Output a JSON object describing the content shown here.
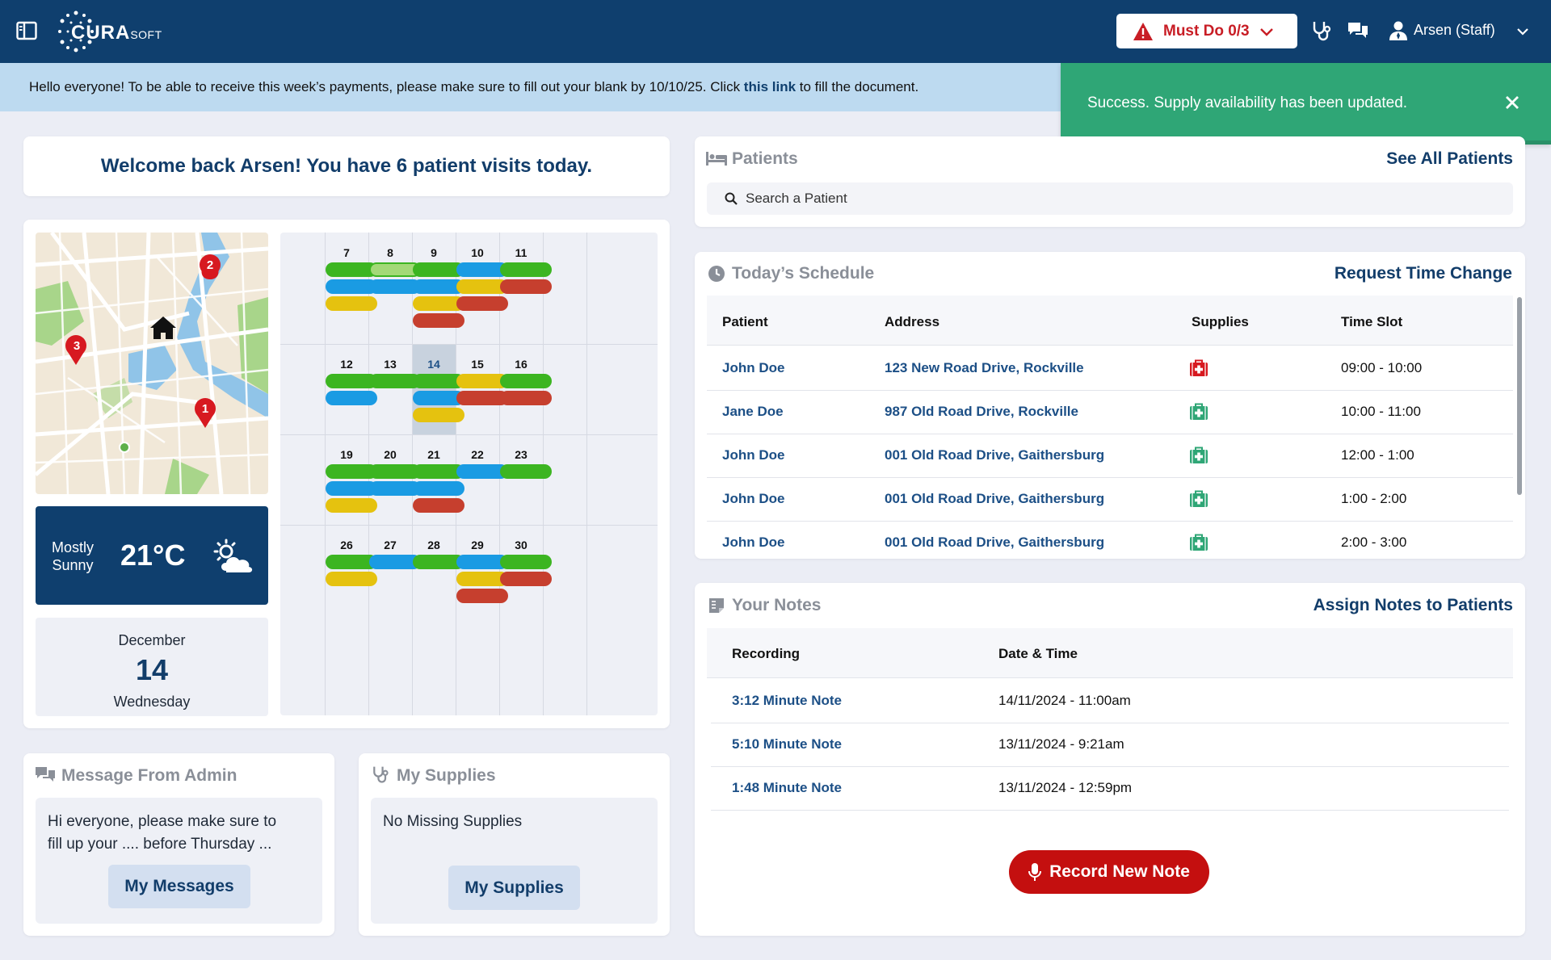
{
  "header": {
    "logo_main": "CURA",
    "logo_sub": "SOFT",
    "must_do_label": "Must Do 0/3",
    "user_label": "Arsen (Staff)"
  },
  "announcement": {
    "text_before": "Hello everyone! To be able to receive this week’s payments, please make sure to fill out your blank by 10/10/25. Click ",
    "link_text": "this link",
    "text_after": " to fill the document."
  },
  "toast": {
    "message": "Success. Supply availability has been updated.",
    "progress": 0.54
  },
  "welcome": {
    "text": "Welcome back Arsen! You have 6 patient visits today."
  },
  "weather": {
    "desc_line1": "Mostly",
    "desc_line2": "Sunny",
    "temp": "21°C"
  },
  "date": {
    "month": "December",
    "day": "14",
    "weekday": "Wednesday"
  },
  "calendar": {
    "today": 14,
    "weeks": [
      [
        {
          "day": "7",
          "pills": [
            "green",
            "blue",
            "yellow"
          ]
        },
        {
          "day": "8",
          "pills": [
            "lightgreen",
            "blue"
          ]
        },
        {
          "day": "9",
          "pills": [
            "green",
            "blue",
            "yellow",
            "red"
          ]
        },
        {
          "day": "10",
          "pills": [
            "blue",
            "yellow",
            "red"
          ]
        },
        {
          "day": "11",
          "pills": [
            "green",
            "red"
          ]
        }
      ],
      [
        {
          "day": "12",
          "pills": [
            "green",
            "blue"
          ]
        },
        {
          "day": "13",
          "pills": [
            "green"
          ]
        },
        {
          "day": "14",
          "pills": [
            "green",
            "blue",
            "yellow"
          ]
        },
        {
          "day": "15",
          "pills": [
            "yellow",
            "red"
          ]
        },
        {
          "day": "16",
          "pills": [
            "green",
            "red"
          ]
        }
      ],
      [
        {
          "day": "19",
          "pills": [
            "green",
            "blue",
            "yellow"
          ]
        },
        {
          "day": "20",
          "pills": [
            "green",
            "blue"
          ]
        },
        {
          "day": "21",
          "pills": [
            "green",
            "blue",
            "red"
          ]
        },
        {
          "day": "22",
          "pills": [
            "blue"
          ]
        },
        {
          "day": "23",
          "pills": [
            "green"
          ]
        }
      ],
      [
        {
          "day": "26",
          "pills": [
            "green",
            "yellow"
          ]
        },
        {
          "day": "27",
          "pills": [
            "blue"
          ]
        },
        {
          "day": "28",
          "pills": [
            "green"
          ]
        },
        {
          "day": "29",
          "pills": [
            "blue",
            "yellow",
            "red"
          ]
        },
        {
          "day": "30",
          "pills": [
            "green",
            "red"
          ]
        }
      ]
    ],
    "colors": {
      "green": "#3cb521",
      "lightgreen": "#a3d977",
      "blue": "#1a9be3",
      "yellow": "#e5c20f",
      "red": "#c63f2e"
    }
  },
  "map": {
    "markers": [
      "1",
      "2",
      "3"
    ]
  },
  "message_admin": {
    "title": "Message From Admin",
    "body_line1": "Hi everyone, please make sure to",
    "body_line2": "fill up your .... before Thursday ...",
    "button": "My Messages"
  },
  "supplies": {
    "title": "My Supplies",
    "body": "No Missing Supplies",
    "button": "My Supplies"
  },
  "patients": {
    "title": "Patients",
    "action": "See All Patients",
    "search_placeholder": "Search a Patient"
  },
  "schedule": {
    "title": "Today’s Schedule",
    "action": "Request Time Change",
    "columns": [
      "Patient",
      "Address",
      "Supplies",
      "Time Slot"
    ],
    "rows": [
      {
        "patient": "John Doe",
        "address": "123 New Road Drive, Rockville",
        "supply_status": "missing",
        "time": "09:00 - 10:00"
      },
      {
        "patient": "Jane Doe",
        "address": "987 Old Road Drive, Rockville",
        "supply_status": "ok",
        "time": "10:00 - 11:00"
      },
      {
        "patient": "John Doe",
        "address": "001 Old Road Drive, Gaithersburg",
        "supply_status": "ok",
        "time": "12:00 - 1:00"
      },
      {
        "patient": "John Doe",
        "address": "001 Old Road Drive, Gaithersburg",
        "supply_status": "ok",
        "time": "1:00 - 2:00"
      },
      {
        "patient": "John Doe",
        "address": "001 Old Road Drive, Gaithersburg",
        "supply_status": "ok",
        "time": "2:00 - 3:00"
      }
    ],
    "status_colors": {
      "missing": "#d71920",
      "ok": "#2fa676"
    }
  },
  "notes": {
    "title": "Your Notes",
    "action": "Assign Notes to Patients",
    "columns": [
      "Recording",
      "Date & Time"
    ],
    "rows": [
      {
        "recording": "3:12 Minute Note",
        "datetime": "14/11/2024 - 11:00am"
      },
      {
        "recording": "5:10 Minute Note",
        "datetime": "13/11/2024 - 9:21am"
      },
      {
        "recording": "1:48 Minute Note",
        "datetime": "13/11/2024 - 12:59pm"
      }
    ],
    "record_button": "Record New Note"
  }
}
